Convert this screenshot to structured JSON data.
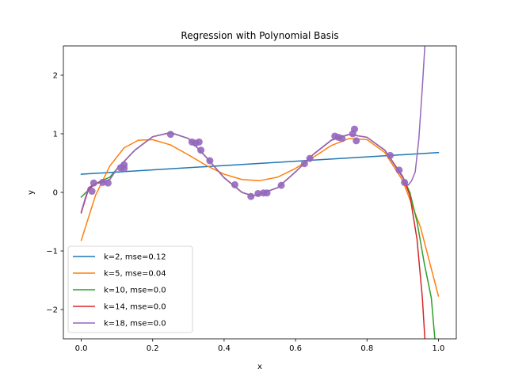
{
  "chart_data": {
    "type": "line",
    "title": "Regression with Polynomial Basis",
    "xlabel": "x",
    "ylabel": "y",
    "xlim": [
      -0.05,
      1.05
    ],
    "ylim": [
      -2.5,
      2.5
    ],
    "x_ticks": [
      0.0,
      0.2,
      0.4,
      0.6,
      0.8,
      1.0
    ],
    "x_tick_labels": [
      "0.0",
      "0.2",
      "0.4",
      "0.6",
      "0.8",
      "1.0"
    ],
    "y_ticks": [
      -2,
      -1,
      0,
      1,
      2
    ],
    "y_tick_labels": [
      "−2",
      "−1",
      "0",
      "1",
      "2"
    ],
    "grid": false,
    "legend_position": "lower-left",
    "series": [
      {
        "name": "k=2, mse=0.12",
        "color": "#1f77b4",
        "points": [
          [
            0.0,
            0.31
          ],
          [
            1.0,
            0.68
          ]
        ]
      },
      {
        "name": "k=5, mse=0.04",
        "color": "#ff7f0e",
        "points": [
          [
            0.0,
            -0.82
          ],
          [
            0.04,
            -0.05
          ],
          [
            0.08,
            0.45
          ],
          [
            0.12,
            0.76
          ],
          [
            0.16,
            0.89
          ],
          [
            0.2,
            0.9
          ],
          [
            0.25,
            0.81
          ],
          [
            0.3,
            0.64
          ],
          [
            0.35,
            0.46
          ],
          [
            0.4,
            0.31
          ],
          [
            0.45,
            0.22
          ],
          [
            0.5,
            0.2
          ],
          [
            0.55,
            0.26
          ],
          [
            0.6,
            0.41
          ],
          [
            0.65,
            0.6
          ],
          [
            0.7,
            0.8
          ],
          [
            0.75,
            0.92
          ],
          [
            0.8,
            0.9
          ],
          [
            0.85,
            0.68
          ],
          [
            0.9,
            0.2
          ],
          [
            0.95,
            -0.6
          ],
          [
            1.0,
            -1.77
          ]
        ]
      },
      {
        "name": "k=10, mse=0.0",
        "color": "#2ca02c",
        "points": [
          [
            0.0,
            -0.08
          ],
          [
            0.03,
            0.1
          ],
          [
            0.05,
            0.18
          ],
          [
            0.08,
            0.26
          ],
          [
            0.1,
            0.4
          ],
          [
            0.15,
            0.72
          ],
          [
            0.2,
            0.95
          ],
          [
            0.25,
            1.02
          ],
          [
            0.3,
            0.92
          ],
          [
            0.35,
            0.6
          ],
          [
            0.4,
            0.25
          ],
          [
            0.45,
            0.0
          ],
          [
            0.48,
            -0.06
          ],
          [
            0.5,
            -0.03
          ],
          [
            0.55,
            0.08
          ],
          [
            0.6,
            0.35
          ],
          [
            0.65,
            0.65
          ],
          [
            0.7,
            0.89
          ],
          [
            0.75,
            0.99
          ],
          [
            0.8,
            0.94
          ],
          [
            0.85,
            0.72
          ],
          [
            0.9,
            0.27
          ],
          [
            0.92,
            0.0
          ],
          [
            0.94,
            -0.5
          ],
          [
            0.96,
            -1.2
          ],
          [
            0.98,
            -1.8
          ],
          [
            0.99,
            -2.5
          ]
        ]
      },
      {
        "name": "k=14, mse=0.0",
        "color": "#d62728",
        "points": [
          [
            0.0,
            -0.35
          ],
          [
            0.02,
            0.05
          ],
          [
            0.04,
            0.15
          ],
          [
            0.06,
            0.18
          ],
          [
            0.08,
            0.22
          ],
          [
            0.1,
            0.4
          ],
          [
            0.15,
            0.72
          ],
          [
            0.2,
            0.95
          ],
          [
            0.25,
            1.02
          ],
          [
            0.3,
            0.92
          ],
          [
            0.35,
            0.6
          ],
          [
            0.4,
            0.25
          ],
          [
            0.45,
            0.0
          ],
          [
            0.48,
            -0.06
          ],
          [
            0.5,
            -0.03
          ],
          [
            0.55,
            0.08
          ],
          [
            0.6,
            0.35
          ],
          [
            0.65,
            0.65
          ],
          [
            0.7,
            0.89
          ],
          [
            0.75,
            0.99
          ],
          [
            0.8,
            0.94
          ],
          [
            0.85,
            0.72
          ],
          [
            0.9,
            0.27
          ],
          [
            0.92,
            -0.05
          ],
          [
            0.94,
            -0.8
          ],
          [
            0.955,
            -1.8
          ],
          [
            0.962,
            -2.5
          ]
        ]
      },
      {
        "name": "k=18, mse=0.0",
        "color": "#9467bd",
        "points": [
          [
            0.0,
            -0.33
          ],
          [
            0.02,
            0.08
          ],
          [
            0.04,
            0.15
          ],
          [
            0.06,
            0.17
          ],
          [
            0.08,
            0.22
          ],
          [
            0.1,
            0.4
          ],
          [
            0.15,
            0.72
          ],
          [
            0.2,
            0.95
          ],
          [
            0.25,
            1.02
          ],
          [
            0.3,
            0.92
          ],
          [
            0.35,
            0.6
          ],
          [
            0.4,
            0.25
          ],
          [
            0.45,
            0.0
          ],
          [
            0.48,
            -0.06
          ],
          [
            0.5,
            -0.03
          ],
          [
            0.55,
            0.08
          ],
          [
            0.6,
            0.35
          ],
          [
            0.65,
            0.65
          ],
          [
            0.7,
            0.89
          ],
          [
            0.75,
            0.99
          ],
          [
            0.8,
            0.94
          ],
          [
            0.85,
            0.72
          ],
          [
            0.9,
            0.25
          ],
          [
            0.915,
            0.12
          ],
          [
            0.925,
            0.2
          ],
          [
            0.935,
            0.35
          ],
          [
            0.945,
            0.9
          ],
          [
            0.955,
            1.8
          ],
          [
            0.962,
            2.5
          ]
        ]
      }
    ],
    "scatter": {
      "color": "#9467bd",
      "points": [
        [
          0.03,
          0.02
        ],
        [
          0.035,
          0.16
        ],
        [
          0.06,
          0.17
        ],
        [
          0.075,
          0.16
        ],
        [
          0.11,
          0.42
        ],
        [
          0.12,
          0.47
        ],
        [
          0.12,
          0.41
        ],
        [
          0.25,
          0.99
        ],
        [
          0.31,
          0.86
        ],
        [
          0.32,
          0.84
        ],
        [
          0.33,
          0.86
        ],
        [
          0.335,
          0.72
        ],
        [
          0.36,
          0.54
        ],
        [
          0.43,
          0.13
        ],
        [
          0.475,
          -0.07
        ],
        [
          0.495,
          -0.02
        ],
        [
          0.51,
          -0.01
        ],
        [
          0.52,
          -0.01
        ],
        [
          0.56,
          0.12
        ],
        [
          0.625,
          0.49
        ],
        [
          0.64,
          0.58
        ],
        [
          0.71,
          0.96
        ],
        [
          0.72,
          0.94
        ],
        [
          0.73,
          0.92
        ],
        [
          0.76,
          1.0
        ],
        [
          0.765,
          1.08
        ],
        [
          0.77,
          0.88
        ],
        [
          0.865,
          0.63
        ],
        [
          0.89,
          0.38
        ],
        [
          0.905,
          0.17
        ]
      ]
    }
  }
}
